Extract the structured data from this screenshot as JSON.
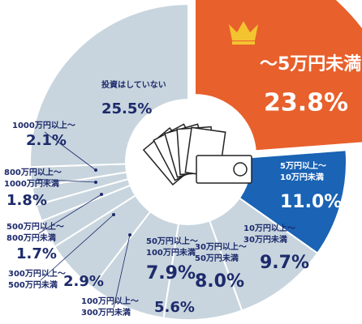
{
  "chart_data": {
    "type": "pie",
    "categories": [
      [
        "～5万円未満"
      ],
      [
        "5万円以上～",
        "10万円未満"
      ],
      [
        "10万円以上～",
        "30万円未満"
      ],
      [
        "30万円以上～",
        "50万円未満"
      ],
      [
        "50万円以上～",
        "100万円未満"
      ],
      [
        "100万円以上～",
        "300万円未満"
      ],
      [
        "300万円以上～",
        "500万円未満"
      ],
      [
        "500万円以上～",
        "800万円未満"
      ],
      [
        "800万円以上～",
        "1000万円未満"
      ],
      [
        "1000万円以上～"
      ],
      [
        "投資はしていない"
      ]
    ],
    "values": [
      23.8,
      11.0,
      9.7,
      8.0,
      7.9,
      5.6,
      2.9,
      1.7,
      1.8,
      2.1,
      25.5
    ],
    "value_labels": [
      "23.8%",
      "11.0%",
      "9.7%",
      "8.0%",
      "7.9%",
      "5.6%",
      "2.9%",
      "1.7%",
      "1.8%",
      "2.1%",
      "25.5%"
    ],
    "colors": [
      "#e8602c",
      "#1a63b5",
      "#c8d5de",
      "#c8d5de",
      "#c8d5de",
      "#c8d5de",
      "#c8d5de",
      "#c8d5de",
      "#c8d5de",
      "#c8d5de",
      "#c8d5de"
    ]
  }
}
